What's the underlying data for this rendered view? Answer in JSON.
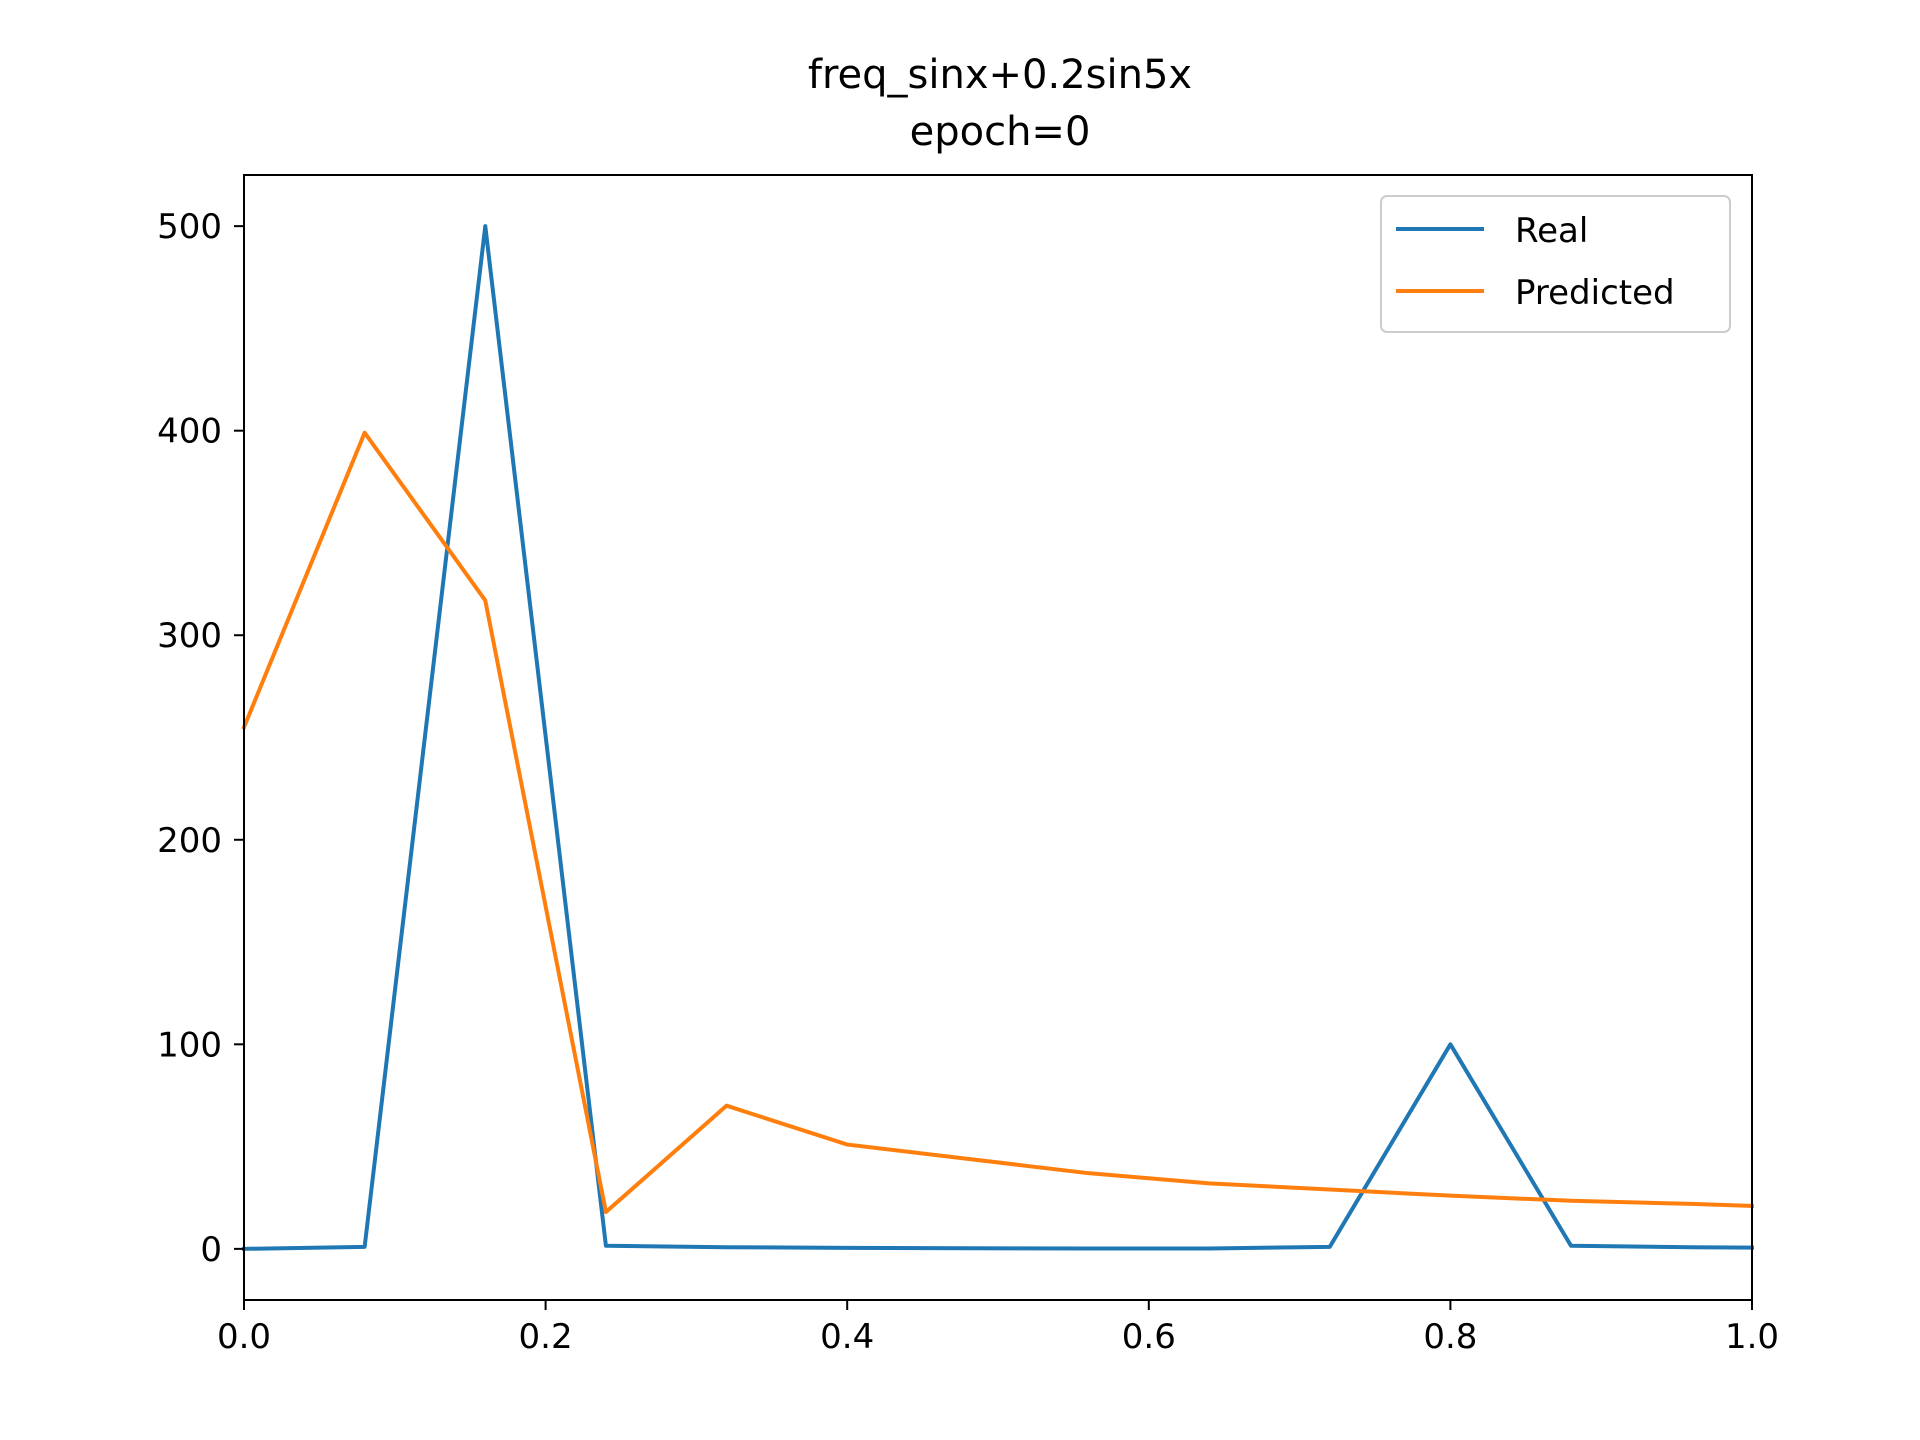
{
  "chart_data": {
    "type": "line",
    "title": "freq_sinx+0.2sin5x",
    "subtitle": "epoch=0",
    "xlabel": "",
    "ylabel": "",
    "xlim": [
      0,
      1
    ],
    "ylim": [
      -25,
      525
    ],
    "xticks": [
      0.0,
      0.2,
      0.4,
      0.6,
      0.8,
      1.0
    ],
    "xtick_labels": [
      "0.0",
      "0.2",
      "0.4",
      "0.6",
      "0.8",
      "1.0"
    ],
    "yticks": [
      0,
      100,
      200,
      300,
      400,
      500
    ],
    "ytick_labels": [
      "0",
      "100",
      "200",
      "300",
      "400",
      "500"
    ],
    "grid": false,
    "legend_position": "top-right",
    "x": [
      0.0,
      0.08,
      0.16,
      0.24,
      0.32,
      0.4,
      0.48,
      0.56,
      0.64,
      0.72,
      0.8,
      0.88,
      0.96,
      1.0
    ],
    "series": [
      {
        "name": "Real",
        "color": "#1f77b4",
        "values": [
          0,
          1,
          500,
          1.5,
          0.8,
          0.5,
          0.3,
          0.2,
          0.2,
          1,
          100,
          1.5,
          0.8,
          0.6
        ]
      },
      {
        "name": "Predicted",
        "color": "#ff7f0e",
        "values": [
          255,
          399,
          317,
          18,
          70,
          51,
          44,
          37,
          32,
          29,
          26,
          23.5,
          22,
          21
        ]
      }
    ]
  }
}
